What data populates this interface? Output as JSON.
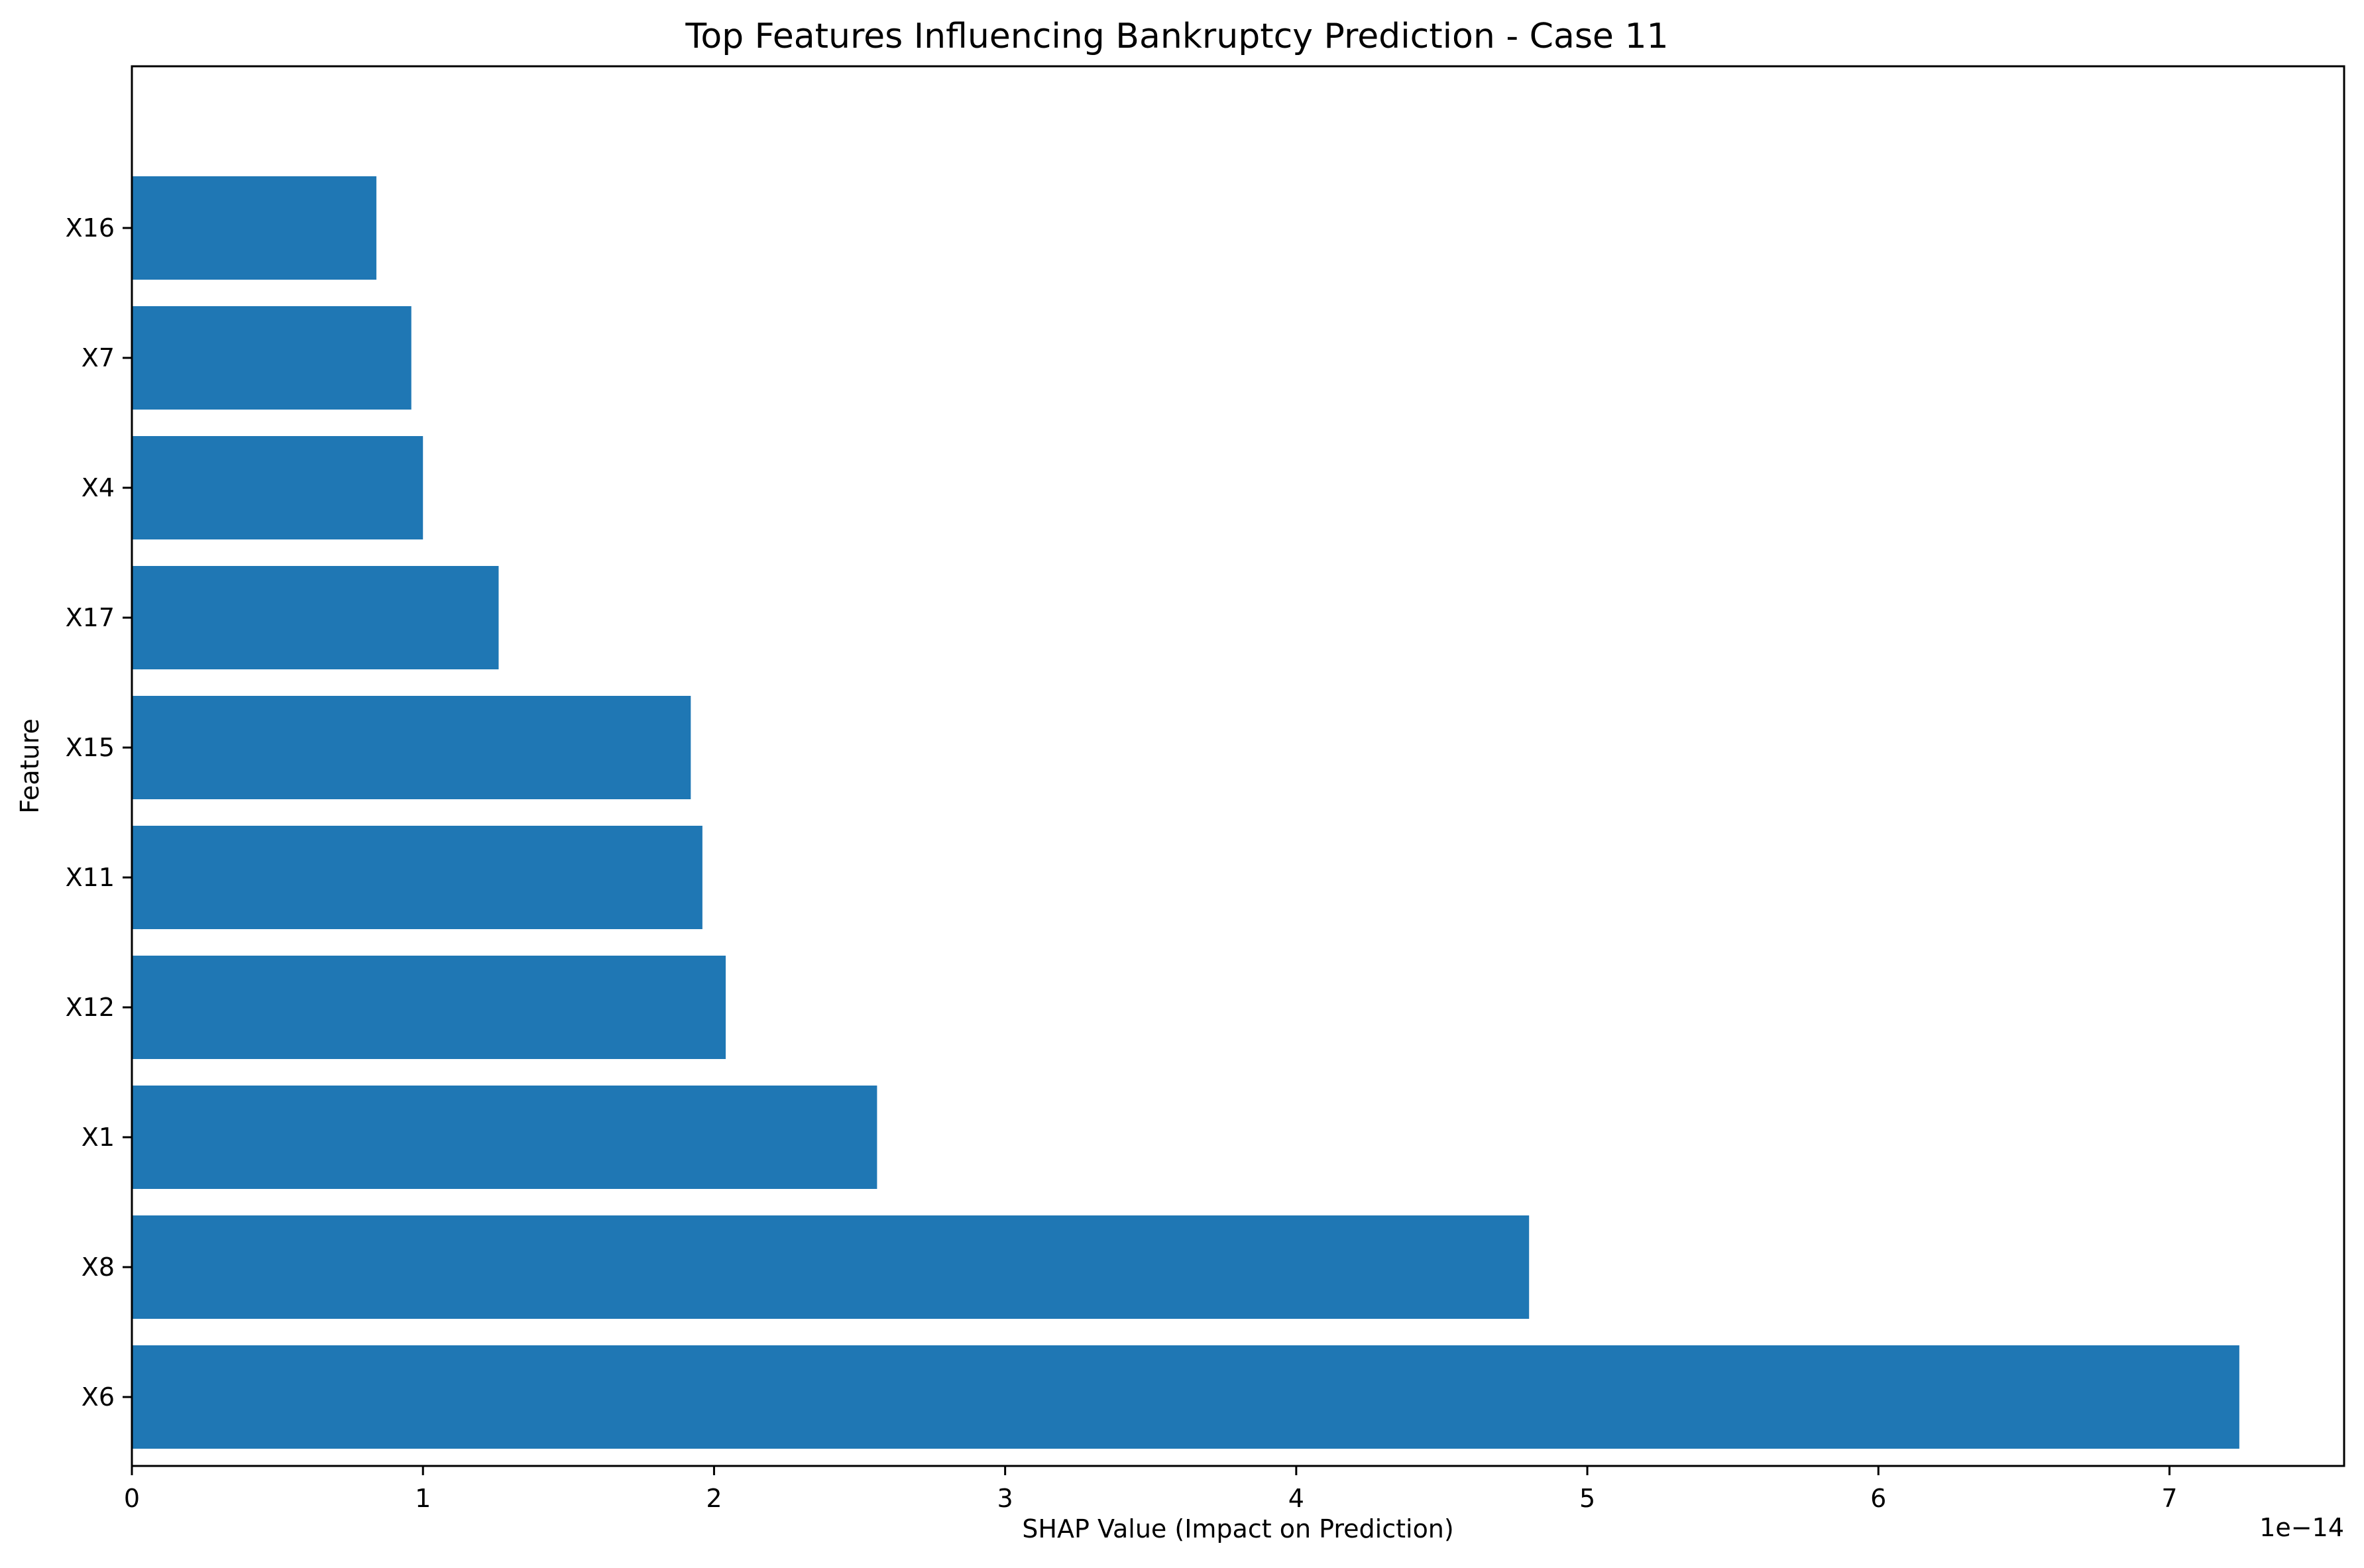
{
  "chart_data": {
    "type": "bar",
    "orientation": "horizontal",
    "title": "Top Features Influencing Bankruptcy Prediction - Case 11",
    "xlabel": "SHAP Value (Impact on Prediction)",
    "ylabel": "Feature",
    "x_offset_text": "1e−14",
    "categories": [
      "X6",
      "X8",
      "X1",
      "X12",
      "X11",
      "X15",
      "X17",
      "X4",
      "X7",
      "X16"
    ],
    "values": [
      7.24,
      4.8,
      2.56,
      2.04,
      1.96,
      1.92,
      1.26,
      1.0,
      0.96,
      0.84
    ],
    "value_scale": "1e-14",
    "xlim": [
      0,
      7.6
    ],
    "xticks": [
      0,
      1,
      2,
      3,
      4,
      5,
      6,
      7
    ],
    "grid": false,
    "legend": "none",
    "colors": {
      "bar": "#1f77b4",
      "axes": "#000000",
      "background": "#ffffff"
    }
  }
}
